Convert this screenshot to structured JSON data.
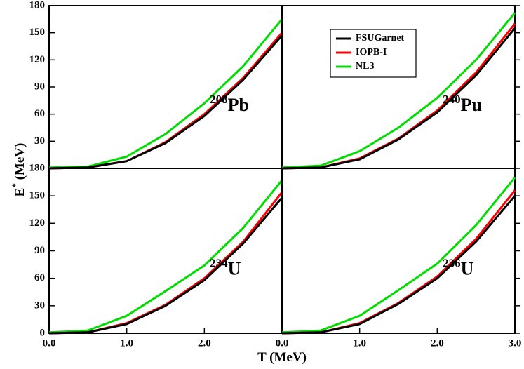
{
  "xlabel": {
    "base": "T",
    "unit": "(MeV)"
  },
  "ylabel": {
    "base": "E",
    "sup": "*",
    "unit": "(MeV)"
  },
  "chart_data": [
    {
      "type": "line",
      "annotation": {
        "mass": "208",
        "element": "Pb"
      },
      "x": [
        0,
        0.5,
        1,
        1.5,
        2,
        2.5,
        3
      ],
      "xlim": [
        0,
        3
      ],
      "ylim": [
        0,
        180
      ],
      "yticks": [
        30,
        60,
        90,
        120,
        150,
        180
      ],
      "series": [
        {
          "name": "FSUGarnet",
          "color": "#000000",
          "values": [
            0,
            1,
            8,
            28,
            58,
            98,
            147
          ]
        },
        {
          "name": "IOPB-I",
          "color": "#ff0000",
          "values": [
            0,
            1,
            8,
            29,
            60,
            100,
            150
          ]
        },
        {
          "name": "NL3",
          "color": "#00dd00",
          "values": [
            1,
            2,
            13,
            38,
            72,
            113,
            165
          ]
        }
      ]
    },
    {
      "type": "line",
      "annotation": {
        "mass": "240",
        "element": "Pu"
      },
      "legend": "upper right",
      "x": [
        0,
        0.5,
        1,
        1.5,
        2,
        2.5,
        3
      ],
      "xlim": [
        0,
        3
      ],
      "ylim": [
        0,
        180
      ],
      "series": [
        {
          "name": "FSUGarnet",
          "color": "#000000",
          "values": [
            0,
            1,
            10,
            32,
            62,
            103,
            155
          ]
        },
        {
          "name": "IOPB-I",
          "color": "#ff0000",
          "values": [
            0,
            1,
            11,
            33,
            64,
            106,
            160
          ]
        },
        {
          "name": "NL3",
          "color": "#00dd00",
          "values": [
            1,
            3,
            19,
            45,
            78,
            120,
            172
          ]
        }
      ]
    },
    {
      "type": "line",
      "annotation": {
        "mass": "234",
        "element": "U"
      },
      "x": [
        0,
        0.5,
        1,
        1.5,
        2,
        2.5,
        3
      ],
      "xlim": [
        0,
        3
      ],
      "ylim": [
        0,
        180
      ],
      "xticks": [
        {
          "value": 0,
          "label": "0.0"
        },
        {
          "value": 1,
          "label": "1.0"
        },
        {
          "value": 2,
          "label": "2.0"
        }
      ],
      "yticks": [
        0,
        30,
        60,
        90,
        120,
        150,
        180
      ],
      "series": [
        {
          "name": "FSUGarnet",
          "color": "#000000",
          "values": [
            0,
            1,
            10,
            30,
            58,
            98,
            148
          ]
        },
        {
          "name": "IOPB-I",
          "color": "#ff0000",
          "values": [
            0,
            1,
            11,
            31,
            60,
            100,
            154
          ]
        },
        {
          "name": "NL3",
          "color": "#00dd00",
          "values": [
            1,
            3,
            19,
            46,
            74,
            115,
            167
          ]
        }
      ]
    },
    {
      "type": "line",
      "annotation": {
        "mass": "236",
        "element": "U"
      },
      "x": [
        0,
        0.5,
        1,
        1.5,
        2,
        2.5,
        3
      ],
      "xlim": [
        0,
        3
      ],
      "ylim": [
        0,
        180
      ],
      "xticks": [
        {
          "value": 0,
          "label": "0.0"
        },
        {
          "value": 1,
          "label": "1.0"
        },
        {
          "value": 2,
          "label": "2.0"
        },
        {
          "value": 3,
          "label": "3.0"
        }
      ],
      "series": [
        {
          "name": "FSUGarnet",
          "color": "#000000",
          "values": [
            0,
            1,
            10,
            32,
            60,
            100,
            150
          ]
        },
        {
          "name": "IOPB-I",
          "color": "#ff0000",
          "values": [
            0,
            1,
            11,
            33,
            62,
            103,
            156
          ]
        },
        {
          "name": "NL3",
          "color": "#00dd00",
          "values": [
            1,
            3,
            19,
            47,
            76,
            118,
            170
          ]
        }
      ]
    }
  ]
}
